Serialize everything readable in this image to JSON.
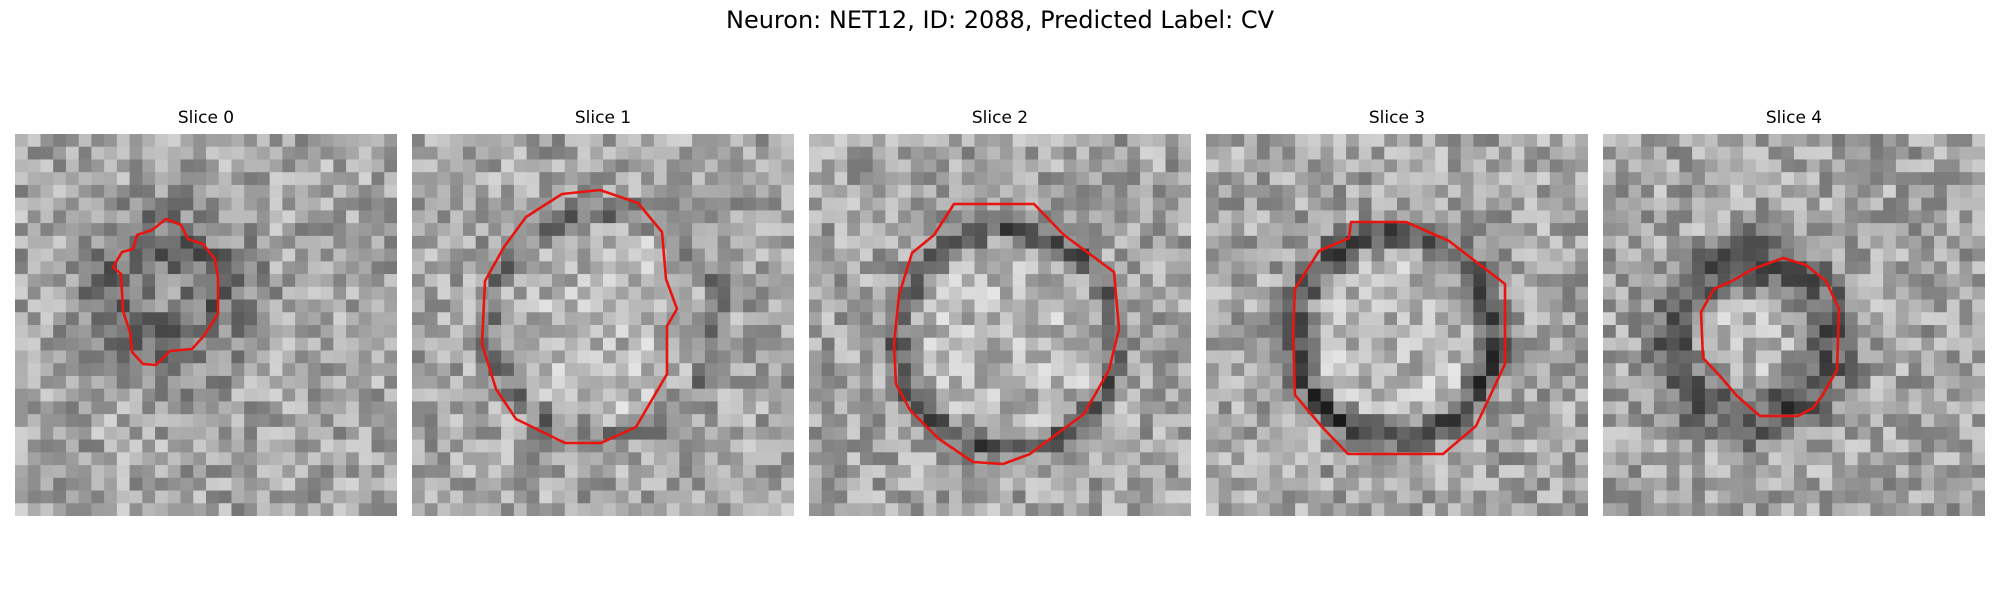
{
  "figure": {
    "suptitle": "Neuron: NET12, ID: 2088, Predicted Label: CV",
    "contour_color": "#e8140f"
  },
  "slices": [
    {
      "title": "Slice 0"
    },
    {
      "title": "Slice 1"
    },
    {
      "title": "Slice 2"
    },
    {
      "title": "Slice 3"
    },
    {
      "title": "Slice 4"
    }
  ]
}
